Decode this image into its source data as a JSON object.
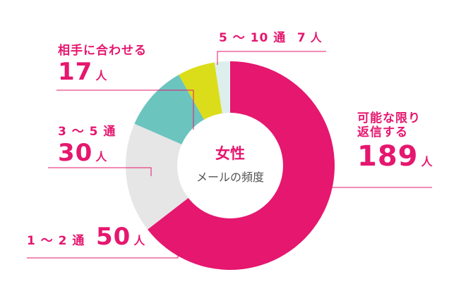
{
  "chart_data": {
    "type": "pie",
    "donut": true,
    "title": "女性",
    "subtitle": "メールの頻度",
    "unit": "人",
    "slices": [
      {
        "label": "可能な限り返信する",
        "label_lines": [
          "可能な限り",
          "返信する"
        ],
        "value": 189,
        "color": "#e5176f"
      },
      {
        "label": "1 〜 2 通",
        "label_lines": [
          "1 〜 2 通"
        ],
        "value": 50,
        "color": "#e6e6e6"
      },
      {
        "label": "3 〜 5 通",
        "label_lines": [
          "3 〜 5 通"
        ],
        "value": 30,
        "color": "#6cc4bf"
      },
      {
        "label": "相手に合わせる",
        "label_lines": [
          "相手に合わせる"
        ],
        "value": 17,
        "color": "#dbdd1b"
      },
      {
        "label": "5 〜 10 通",
        "label_lines": [
          "5 〜 10 通"
        ],
        "value": 7,
        "color": "#dcefec"
      }
    ],
    "leader_color": "#e5176f"
  }
}
